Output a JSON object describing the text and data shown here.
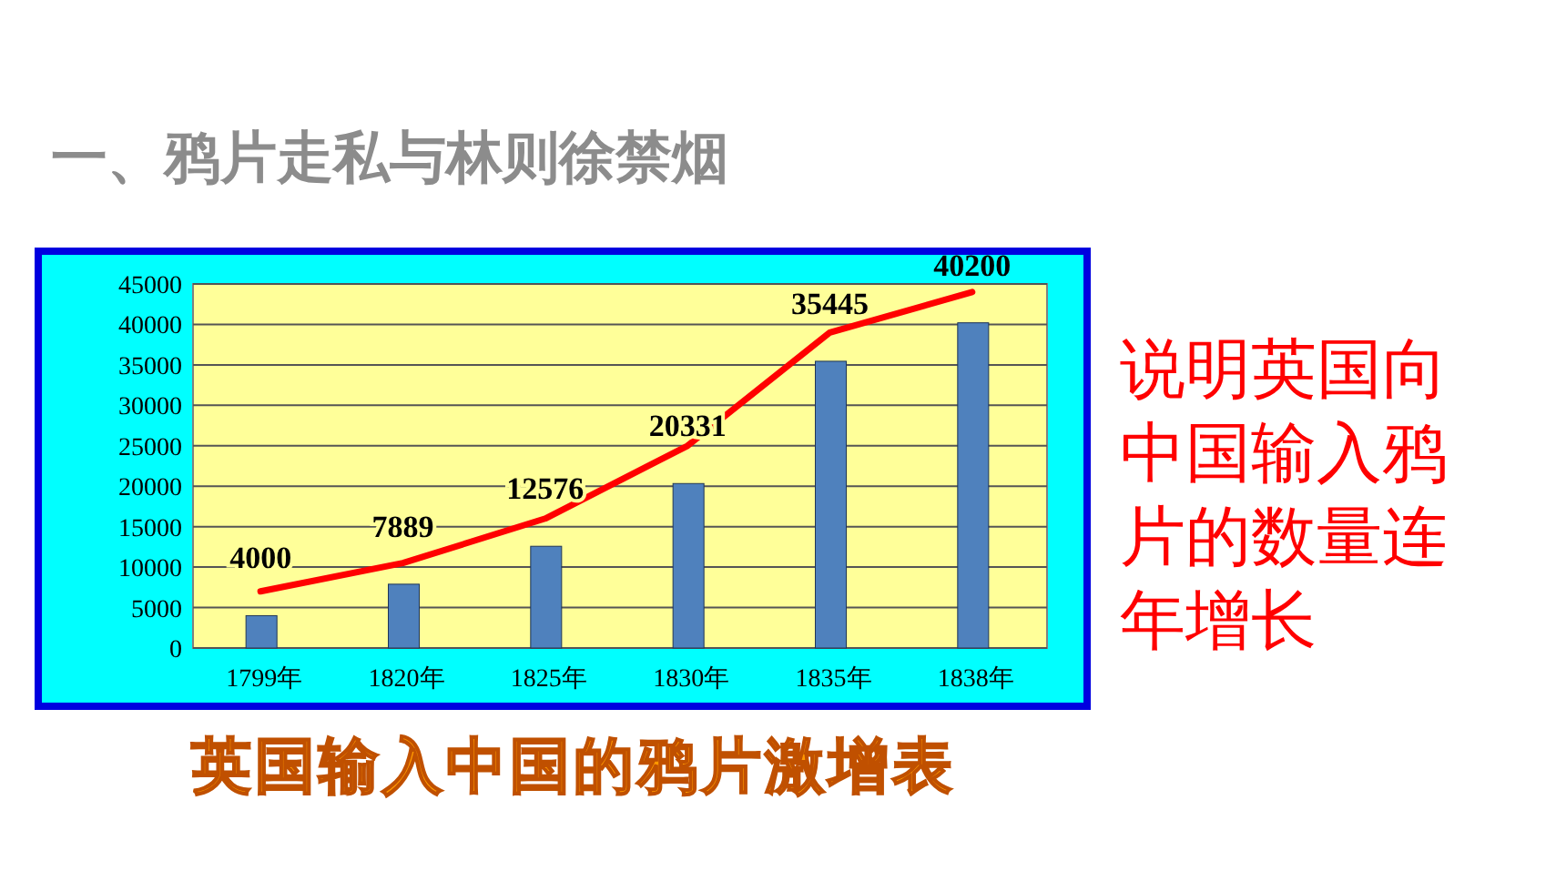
{
  "chart_data": {
    "type": "bar",
    "title": "一、鸦片走私与林则徐禁烟",
    "subtitle": "英国输入中国的鸦片激增表",
    "annotations": [
      "说明英国向中国输入鸦片的数量连年增长"
    ],
    "categories": [
      "1799年",
      "1820年",
      "1825年",
      "1830年",
      "1835年",
      "1838年"
    ],
    "series": [
      {
        "color": "#4f81bd",
        "values": [
          4000,
          7889,
          12576,
          20331,
          35445,
          40200
        ],
        "value_labels": [
          "4000",
          "7889",
          "12576",
          "20331",
          "35445",
          "40200"
        ]
      },
      {
        "type": "line",
        "color": "#ff0000",
        "values": [
          7000,
          10500,
          16000,
          25000,
          39000,
          44000
        ]
      }
    ],
    "ylim": [
      0,
      45000
    ],
    "yticks": [
      0,
      5000,
      10000,
      15000,
      20000,
      25000,
      30000,
      35000,
      40000,
      45000
    ],
    "grid": "y",
    "marker": "none",
    "line_style": "solid"
  }
}
